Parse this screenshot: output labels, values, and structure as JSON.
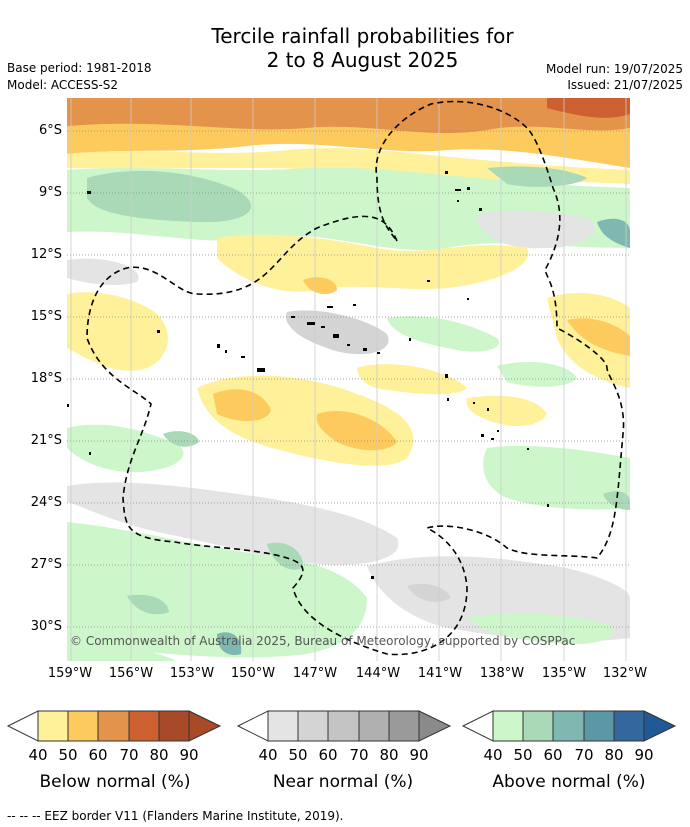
{
  "header": {
    "title_line1": "Tercile rainfall probabilities for",
    "title_line2": "2 to 8 August 2025",
    "base_period": "Base period: 1981-2018",
    "model": "Model: ACCESS-S2",
    "model_run": "Model run: 19/07/2025",
    "issued": "Issued: 21/07/2025"
  },
  "map": {
    "lat_ticks": [
      "6°S",
      "9°S",
      "12°S",
      "15°S",
      "18°S",
      "21°S",
      "24°S",
      "27°S",
      "30°S"
    ],
    "lon_ticks": [
      "159°W",
      "156°W",
      "153°W",
      "150°W",
      "147°W",
      "144°W",
      "141°W",
      "138°W",
      "135°W",
      "132°W"
    ],
    "credit": "© Commonwealth of Australia 2025, Bureau of Meteorology, supported by COSPPac",
    "colors": {
      "below": [
        "#fff09a",
        "#fdca5e",
        "#e3944a",
        "#cc6030",
        "#a84a28"
      ],
      "near": [
        "#e4e4e4",
        "#d4d4d4",
        "#c4c4c4",
        "#b0b0b0",
        "#9a9a9a"
      ],
      "above": [
        "#cdf7cb",
        "#a9d9b7",
        "#7fb8b0",
        "#5b98a6",
        "#33679e"
      ]
    }
  },
  "legends": {
    "below": {
      "title": "Below normal (%)",
      "ticks": [
        "40",
        "50",
        "60",
        "70",
        "80",
        "90"
      ]
    },
    "near": {
      "title": "Near normal (%)",
      "ticks": [
        "40",
        "50",
        "60",
        "70",
        "80",
        "90"
      ]
    },
    "above": {
      "title": "Above normal (%)",
      "ticks": [
        "40",
        "50",
        "60",
        "70",
        "80",
        "90"
      ]
    }
  },
  "footer": {
    "eez_note": "-- -- -- EEZ border V11 (Flanders Marine Institute, 2019)."
  }
}
